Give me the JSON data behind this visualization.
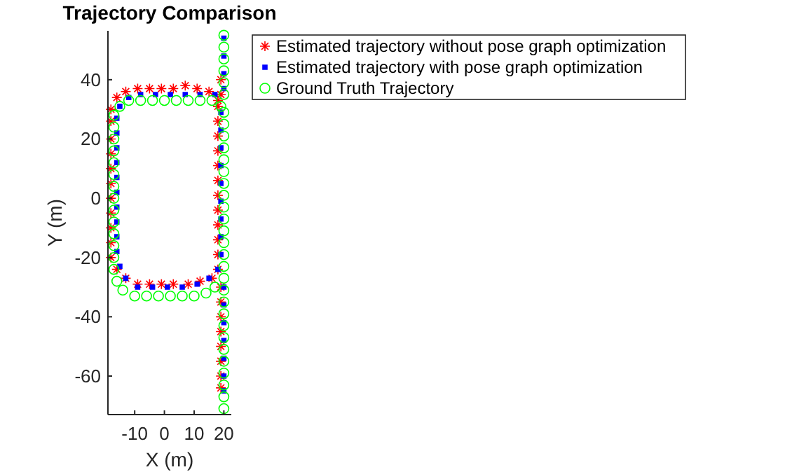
{
  "chart_data": {
    "type": "scatter",
    "title": "Trajectory Comparison",
    "xlabel": "X (m)",
    "ylabel": "Y (m)",
    "xlim": [
      -19,
      22.5
    ],
    "ylim": [
      -73,
      56.5
    ],
    "xticks": [
      -10,
      0,
      10,
      20
    ],
    "yticks": [
      -60,
      -40,
      -20,
      0,
      20,
      40
    ],
    "grid": false,
    "legend": "top right",
    "series": [
      {
        "name": "Estimated trajectory without pose graph optimization",
        "color": "#ff0000",
        "marker": "cross",
        "x": [
          18,
          15,
          11,
          7,
          3,
          -1,
          -5,
          -9,
          -13,
          -16,
          -18,
          -18,
          -18,
          -18,
          -18,
          -18,
          -18,
          -18,
          -18,
          -18,
          -18,
          -16,
          -13,
          -9,
          -5,
          -1,
          3,
          8,
          12,
          16,
          18,
          18,
          18,
          18,
          18,
          18,
          18,
          18,
          18,
          18,
          18,
          18,
          19,
          19,
          19,
          19,
          19,
          19,
          19,
          19,
          19,
          19
        ],
        "values": [
          33,
          36,
          37,
          38,
          37,
          37,
          37,
          37,
          36,
          34,
          30,
          26,
          20,
          15,
          10,
          5,
          0,
          -5,
          -10,
          -15,
          -20,
          -24,
          -27,
          -29,
          -29,
          -29,
          -29,
          -29,
          -28,
          -27,
          -24,
          -19,
          -14,
          -9,
          -4,
          1,
          6,
          11,
          16,
          21,
          26,
          31,
          35,
          40,
          -30,
          -35,
          -40,
          -45,
          -50,
          -55,
          -60,
          -64
        ]
      },
      {
        "name": "Estimated trajectory with pose graph optimization",
        "color": "#0000ff",
        "marker": "square",
        "x": [
          20,
          20,
          20,
          20,
          17,
          12,
          7,
          2,
          -3,
          -8,
          -12,
          -15,
          -16,
          -16,
          -16,
          -16,
          -16,
          -16,
          -16,
          -16,
          -16,
          -16,
          -15,
          -13,
          -9,
          -4,
          1,
          6,
          11,
          15,
          18,
          19,
          19,
          19,
          19,
          19,
          19,
          19,
          19,
          19,
          20,
          20,
          20,
          20,
          20,
          20,
          20
        ],
        "values": [
          54,
          48,
          42,
          37,
          35,
          35,
          35,
          35,
          35,
          35,
          34,
          31,
          27,
          22,
          17,
          12,
          7,
          2,
          -3,
          -8,
          -13,
          -18,
          -23,
          -27,
          -30,
          -30,
          -30,
          -30,
          -29,
          -27,
          -24,
          -19,
          -13,
          -7,
          -1,
          5,
          11,
          17,
          23,
          29,
          -30,
          -36,
          -42,
          -48,
          -54,
          -60,
          -65
        ]
      },
      {
        "name": "Ground Truth Trajectory",
        "color": "#00ff00",
        "marker": "circle",
        "x": [
          20,
          20,
          20,
          20,
          20,
          20,
          19,
          16,
          12,
          8,
          4,
          0,
          -4,
          -8,
          -12,
          -15,
          -17,
          -17,
          -17,
          -17,
          -17,
          -17,
          -17,
          -17,
          -17,
          -17,
          -17,
          -17,
          -17,
          -17,
          -16,
          -14,
          -10,
          -6,
          -2,
          2,
          6,
          10,
          14,
          17,
          20,
          20,
          20,
          20,
          20,
          20,
          20,
          20,
          20,
          20,
          20,
          20,
          20,
          20,
          20,
          20,
          20,
          20,
          20,
          20,
          20,
          20,
          20,
          20,
          20,
          20
        ],
        "values": [
          55,
          51,
          47,
          43,
          39,
          35,
          31,
          33,
          33,
          33,
          33,
          33,
          33,
          33,
          33,
          31,
          28,
          24,
          20,
          16,
          12,
          8,
          4,
          0,
          -4,
          -8,
          -12,
          -16,
          -20,
          -24,
          -28,
          -31,
          -33,
          -33,
          -33,
          -33,
          -33,
          -33,
          -32,
          -30,
          -27,
          -23,
          -19,
          -15,
          -11,
          -7,
          -3,
          1,
          5,
          9,
          13,
          17,
          21,
          25,
          29,
          -31,
          -35,
          -39,
          -43,
          -47,
          -51,
          -55,
          -59,
          -63,
          -67,
          -71
        ]
      }
    ]
  }
}
